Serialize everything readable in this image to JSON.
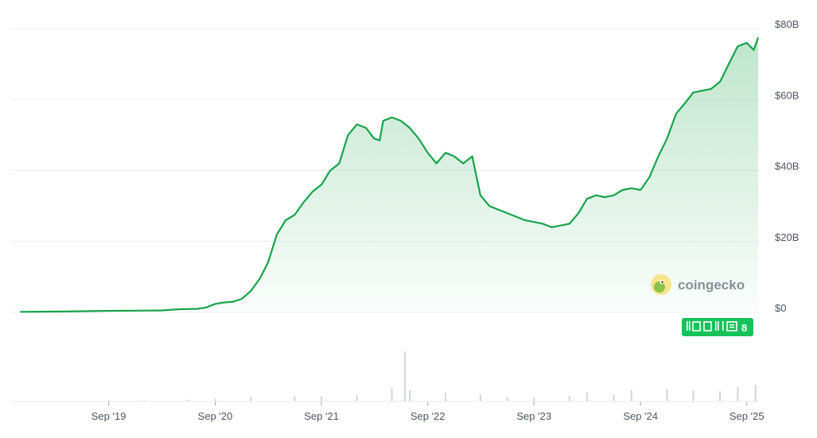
{
  "chart_data": {
    "type": "area",
    "series": [
      {
        "points": [
          [
            "2018-11-01",
            0.15
          ],
          [
            "2019-01-01",
            0.2
          ],
          [
            "2019-04-01",
            0.25
          ],
          [
            "2019-07-01",
            0.35
          ],
          [
            "2019-09-01",
            0.45
          ],
          [
            "2019-12-01",
            0.5
          ],
          [
            "2020-03-01",
            0.55
          ],
          [
            "2020-05-01",
            0.9
          ],
          [
            "2020-07-01",
            1.0
          ],
          [
            "2020-08-01",
            1.4
          ],
          [
            "2020-09-01",
            2.4
          ],
          [
            "2020-10-01",
            2.8
          ],
          [
            "2020-11-01",
            3.0
          ],
          [
            "2020-12-01",
            3.8
          ],
          [
            "2021-01-01",
            6.0
          ],
          [
            "2021-02-01",
            9.5
          ],
          [
            "2021-03-01",
            14.0
          ],
          [
            "2021-04-01",
            22.0
          ],
          [
            "2021-05-01",
            26.0
          ],
          [
            "2021-06-01",
            27.5
          ],
          [
            "2021-07-01",
            31.0
          ],
          [
            "2021-08-01",
            34.0
          ],
          [
            "2021-09-01",
            36.0
          ],
          [
            "2021-10-01",
            40.0
          ],
          [
            "2021-11-01",
            42.0
          ],
          [
            "2021-12-01",
            50.0
          ],
          [
            "2022-01-01",
            53.0
          ],
          [
            "2022-02-01",
            52.0
          ],
          [
            "2022-03-01",
            49.0
          ],
          [
            "2022-03-20",
            48.5
          ],
          [
            "2022-04-01",
            54.0
          ],
          [
            "2022-05-01",
            55.0
          ],
          [
            "2022-06-01",
            54.0
          ],
          [
            "2022-07-01",
            52.0
          ],
          [
            "2022-08-01",
            49.0
          ],
          [
            "2022-09-01",
            45.0
          ],
          [
            "2022-10-01",
            42.0
          ],
          [
            "2022-11-01",
            45.0
          ],
          [
            "2022-12-01",
            44.0
          ],
          [
            "2023-01-01",
            42.0
          ],
          [
            "2023-02-01",
            44.0
          ],
          [
            "2023-03-01",
            33.0
          ],
          [
            "2023-04-01",
            30.0
          ],
          [
            "2023-05-01",
            29.0
          ],
          [
            "2023-06-01",
            28.0
          ],
          [
            "2023-07-01",
            27.0
          ],
          [
            "2023-08-01",
            26.0
          ],
          [
            "2023-09-01",
            25.5
          ],
          [
            "2023-10-01",
            25.0
          ],
          [
            "2023-11-01",
            24.0
          ],
          [
            "2023-12-01",
            24.5
          ],
          [
            "2024-01-01",
            25.0
          ],
          [
            "2024-02-01",
            28.0
          ],
          [
            "2024-03-01",
            32.0
          ],
          [
            "2024-04-01",
            33.0
          ],
          [
            "2024-05-01",
            32.5
          ],
          [
            "2024-06-01",
            33.0
          ],
          [
            "2024-07-01",
            34.5
          ],
          [
            "2024-08-01",
            35.0
          ],
          [
            "2024-09-01",
            34.5
          ],
          [
            "2024-10-01",
            38.0
          ],
          [
            "2024-11-01",
            44.0
          ],
          [
            "2024-12-01",
            49.0
          ],
          [
            "2025-01-01",
            56.0
          ],
          [
            "2025-02-01",
            59.0
          ],
          [
            "2025-03-01",
            62.0
          ],
          [
            "2025-04-01",
            62.5
          ],
          [
            "2025-05-01",
            63.0
          ],
          [
            "2025-06-01",
            65.0
          ],
          [
            "2025-07-01",
            70.0
          ],
          [
            "2025-08-01",
            75.0
          ],
          [
            "2025-09-01",
            76.0
          ],
          [
            "2025-09-25",
            74.0
          ],
          [
            "2025-10-10",
            77.5
          ]
        ]
      }
    ],
    "ylim": [
      0,
      80
    ],
    "y_ticks": [
      "$80B",
      "$60B",
      "$40B",
      "$20B",
      "$0"
    ],
    "y_tick_values": [
      80,
      60,
      40,
      20,
      0
    ],
    "x_ticks": [
      "Sep '19",
      "Sep '20",
      "Sep '21",
      "Sep '22",
      "Sep '23",
      "Sep '24",
      "Sep '25"
    ],
    "x_tick_dates": [
      "2019-09-01",
      "2020-09-01",
      "2021-09-01",
      "2022-09-01",
      "2023-09-01",
      "2024-09-01",
      "2025-09-01"
    ],
    "x_range": [
      "2018-10-01",
      "2025-10-10"
    ],
    "grid": true,
    "line_color": "#16a34a",
    "fill_color": "#16a34a",
    "volume": {
      "color": "#d1d5db",
      "bars": [
        [
          "2019-09-01",
          0.02
        ],
        [
          "2020-01-01",
          0.02
        ],
        [
          "2020-06-01",
          0.03
        ],
        [
          "2020-09-01",
          0.05
        ],
        [
          "2021-01-01",
          0.08
        ],
        [
          "2021-06-01",
          0.1
        ],
        [
          "2021-09-01",
          0.09
        ],
        [
          "2022-01-01",
          0.12
        ],
        [
          "2022-05-01",
          0.25
        ],
        [
          "2022-06-15",
          0.9
        ],
        [
          "2022-07-01",
          0.2
        ],
        [
          "2022-11-01",
          0.15
        ],
        [
          "2023-03-01",
          0.12
        ],
        [
          "2023-06-01",
          0.08
        ],
        [
          "2023-09-01",
          0.07
        ],
        [
          "2024-01-01",
          0.1
        ],
        [
          "2024-03-01",
          0.16
        ],
        [
          "2024-06-01",
          0.12
        ],
        [
          "2024-08-01",
          0.2
        ],
        [
          "2024-12-01",
          0.22
        ],
        [
          "2025-03-01",
          0.2
        ],
        [
          "2025-06-01",
          0.18
        ],
        [
          "2025-08-01",
          0.26
        ],
        [
          "2025-10-01",
          0.3
        ]
      ]
    }
  },
  "watermark": {
    "brand": "coingecko"
  },
  "badge": {
    "text": "8"
  }
}
